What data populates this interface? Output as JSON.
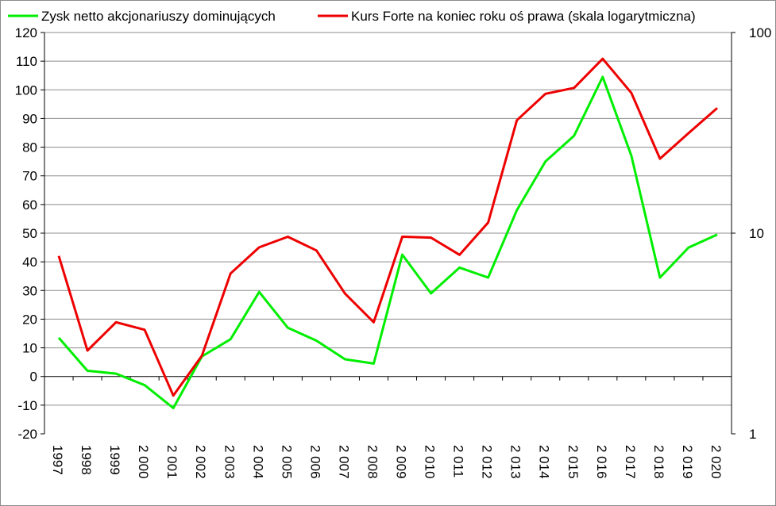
{
  "chart_data": {
    "type": "line",
    "categories": [
      "1997",
      "1998",
      "1999",
      "2 000",
      "2 001",
      "2 002",
      "2 003",
      "2 004",
      "2 005",
      "2 006",
      "2 007",
      "2 008",
      "2 009",
      "2 010",
      "2 011",
      "2 012",
      "2 013",
      "2 014",
      "2 015",
      "2 016",
      "2 017",
      "2 018",
      "2 019",
      "2 020"
    ],
    "series": [
      {
        "name": "Zysk netto akcjonariuszy dominujących",
        "axis": "left",
        "color": "#00ee00",
        "values": [
          13.5,
          2,
          1,
          -3,
          -11,
          7,
          13,
          29.5,
          17,
          12.5,
          6,
          4.5,
          42.5,
          29,
          38,
          34.5,
          58,
          75,
          84,
          104.5,
          77,
          34.5,
          45,
          49.5
        ]
      },
      {
        "name": "Kurs Forte na koniec roku oś prawa (skala logarytmiczna)",
        "axis": "right",
        "color": "#ee0000",
        "values": [
          7.7,
          2.6,
          3.6,
          3.3,
          1.55,
          2.45,
          6.3,
          8.5,
          9.6,
          8.2,
          5.0,
          3.6,
          9.6,
          9.5,
          7.8,
          11.3,
          36.5,
          49.5,
          53.0,
          74.0,
          50.0,
          23.5,
          31.5,
          42.0
        ]
      }
    ],
    "y_left": {
      "min": -20,
      "max": 120,
      "step": 10,
      "ticks": [
        "-20",
        "-10",
        "0",
        "10",
        "20",
        "30",
        "40",
        "50",
        "60",
        "70",
        "80",
        "90",
        "100",
        "110",
        "120"
      ]
    },
    "y_right": {
      "scale": "log",
      "min": 1,
      "max": 100,
      "ticks": [
        "1",
        "10",
        "100"
      ]
    },
    "grid": "horizontal",
    "legend": "top",
    "title": "",
    "xlabel": "",
    "ylabel": ""
  }
}
